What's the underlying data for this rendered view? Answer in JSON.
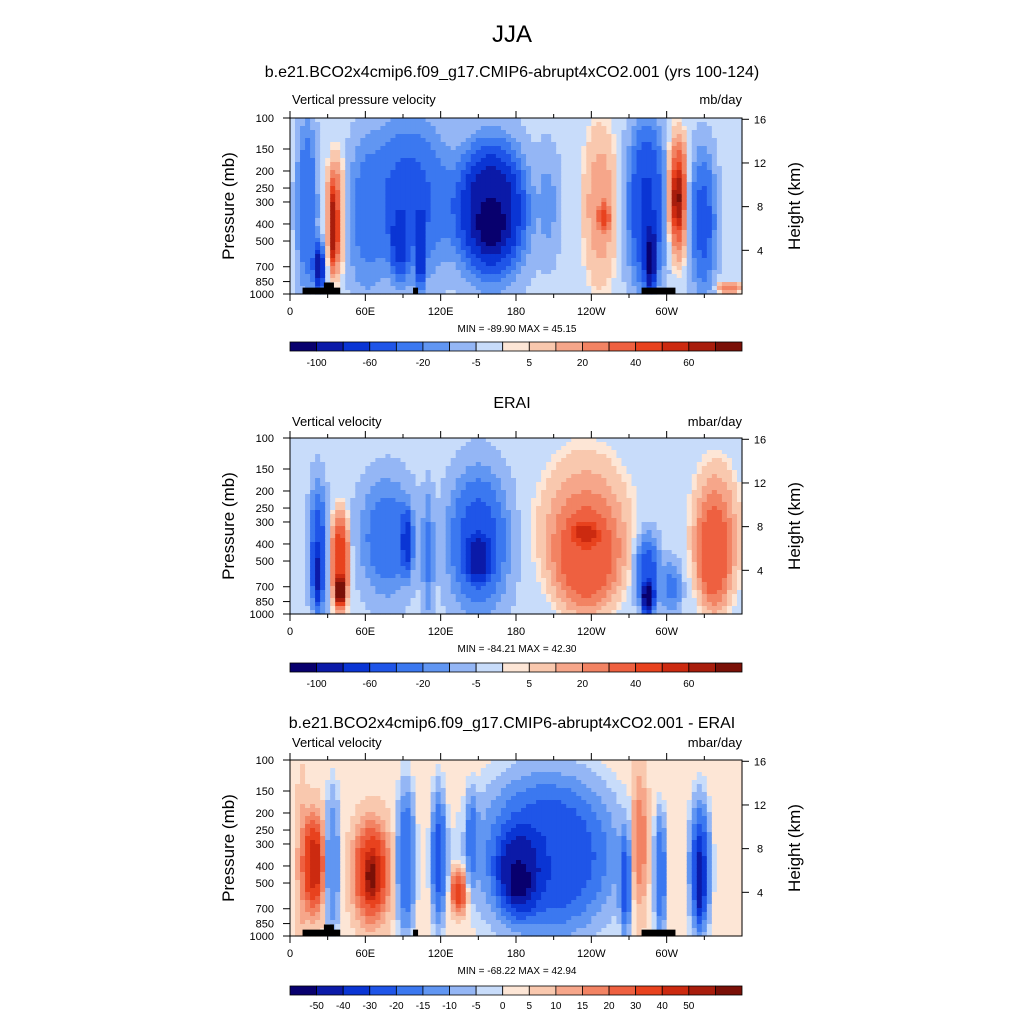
{
  "page_title": "JJA",
  "chart_data": [
    {
      "type": "heatmap",
      "title": "b.e21.BCO2x4cmip6.f09_g17.CMIP6-abrupt4xCO2.001 (yrs 100-124)",
      "left_label": "Vertical pressure velocity",
      "units_label": "mb/day",
      "ylabel": "Pressure (mb)",
      "ylabel_right": "Height (km)",
      "stats": "MIN = -89.90  MAX =  45.15",
      "x_ticks": [
        {
          "lon": 0,
          "label": "0"
        },
        {
          "lon": 60,
          "label": "60E"
        },
        {
          "lon": 120,
          "label": "120E"
        },
        {
          "lon": 180,
          "label": "180"
        },
        {
          "lon": 240,
          "label": "120W"
        },
        {
          "lon": 300,
          "label": "60W"
        }
      ],
      "y_ticks": [
        {
          "p": 100,
          "label": "100"
        },
        {
          "p": 150,
          "label": "150"
        },
        {
          "p": 200,
          "label": "200"
        },
        {
          "p": 250,
          "label": "250"
        },
        {
          "p": 300,
          "label": "300"
        },
        {
          "p": 400,
          "label": "400"
        },
        {
          "p": 500,
          "label": "500"
        },
        {
          "p": 700,
          "label": "700"
        },
        {
          "p": 850,
          "label": "850"
        },
        {
          "p": 1000,
          "label": "1000"
        }
      ],
      "y_right_ticks": [
        {
          "km": 4,
          "label": "4"
        },
        {
          "km": 8,
          "label": "8"
        },
        {
          "km": 12,
          "label": "12"
        },
        {
          "km": 16,
          "label": "16"
        }
      ],
      "colorbar": {
        "colors": [
          "#08006e",
          "#0b1aa8",
          "#0a35d4",
          "#1f55e8",
          "#3b78f0",
          "#6196f2",
          "#94b6f5",
          "#c8dcfa",
          "#fde6d6",
          "#f9c8ae",
          "#f6a68a",
          "#f28363",
          "#ee6040",
          "#e8421e",
          "#cc2a10",
          "#a81d0c",
          "#7a1007"
        ],
        "labels": [
          {
            "after": 1,
            "label": "-100"
          },
          {
            "after": 3,
            "label": "-60"
          },
          {
            "after": 5,
            "label": "-20"
          },
          {
            "after": 7,
            "label": "-5"
          },
          {
            "after": 9,
            "label": "5"
          },
          {
            "after": 11,
            "label": "20"
          },
          {
            "after": 13,
            "label": "40"
          },
          {
            "after": 15,
            "label": "60"
          }
        ]
      },
      "value_range": [
        -90,
        45
      ],
      "background_value": -4,
      "features": [
        {
          "lon": [
            5,
            22
          ],
          "p": [
            100,
            1000
          ],
          "v": -40
        },
        {
          "lon": [
            18,
            28
          ],
          "p": [
            500,
            1000
          ],
          "v": -70
        },
        {
          "lon": [
            28,
            45
          ],
          "p": [
            160,
            800
          ],
          "v": 20
        },
        {
          "lon": [
            32,
            38
          ],
          "p": [
            250,
            700
          ],
          "v": 40
        },
        {
          "lon": [
            45,
            75
          ],
          "p": [
            130,
            1000
          ],
          "v": -30
        },
        {
          "lon": [
            58,
            130
          ],
          "p": [
            100,
            850
          ],
          "v": -45
        },
        {
          "lon": [
            80,
            95
          ],
          "p": [
            300,
            800
          ],
          "v": -60
        },
        {
          "lon": [
            100,
            108
          ],
          "p": [
            300,
            1000
          ],
          "v": -65
        },
        {
          "lon": [
            130,
            190
          ],
          "p": [
            130,
            850
          ],
          "v": -75
        },
        {
          "lon": [
            150,
            170
          ],
          "p": [
            300,
            550
          ],
          "v": -90
        },
        {
          "lon": [
            195,
            215
          ],
          "p": [
            150,
            650
          ],
          "v": -20
        },
        {
          "lon": [
            232,
            262
          ],
          "p": [
            100,
            1000
          ],
          "v": 10
        },
        {
          "lon": [
            245,
            255
          ],
          "p": [
            300,
            450
          ],
          "v": 25
        },
        {
          "lon": [
            268,
            300
          ],
          "p": [
            100,
            1000
          ],
          "v": -55
        },
        {
          "lon": [
            282,
            292
          ],
          "p": [
            400,
            1000
          ],
          "v": -80
        },
        {
          "lon": [
            300,
            318
          ],
          "p": [
            120,
            650
          ],
          "v": 25
        },
        {
          "lon": [
            305,
            313
          ],
          "p": [
            200,
            400
          ],
          "v": 40
        },
        {
          "lon": [
            318,
            340
          ],
          "p": [
            150,
            1000
          ],
          "v": -45
        },
        {
          "lon": [
            340,
            360
          ],
          "p": [
            850,
            1000
          ],
          "v": 15
        }
      ],
      "topography": [
        {
          "lon": [
            10,
            40
          ],
          "p": 920
        },
        {
          "lon": [
            27,
            35
          ],
          "p": 860
        },
        {
          "lon": [
            98,
            102
          ],
          "p": 920
        },
        {
          "lon": [
            280,
            307
          ],
          "p": 920
        }
      ]
    },
    {
      "type": "heatmap",
      "title": "ERAI",
      "left_label": "Vertical velocity",
      "units_label": "mbar/day",
      "ylabel": "Pressure (mb)",
      "ylabel_right": "Height (km)",
      "stats": "MIN = -84.21  MAX =  42.30",
      "x_ticks": [
        {
          "lon": 0,
          "label": "0"
        },
        {
          "lon": 60,
          "label": "60E"
        },
        {
          "lon": 120,
          "label": "120E"
        },
        {
          "lon": 180,
          "label": "180"
        },
        {
          "lon": 240,
          "label": "120W"
        },
        {
          "lon": 300,
          "label": "60W"
        }
      ],
      "y_ticks": [
        {
          "p": 100,
          "label": "100"
        },
        {
          "p": 150,
          "label": "150"
        },
        {
          "p": 200,
          "label": "200"
        },
        {
          "p": 250,
          "label": "250"
        },
        {
          "p": 300,
          "label": "300"
        },
        {
          "p": 400,
          "label": "400"
        },
        {
          "p": 500,
          "label": "500"
        },
        {
          "p": 700,
          "label": "700"
        },
        {
          "p": 850,
          "label": "850"
        },
        {
          "p": 1000,
          "label": "1000"
        }
      ],
      "y_right_ticks": [
        {
          "km": 4,
          "label": "4"
        },
        {
          "km": 8,
          "label": "8"
        },
        {
          "km": 12,
          "label": "12"
        },
        {
          "km": 16,
          "label": "16"
        }
      ],
      "colorbar": {
        "colors": [
          "#08006e",
          "#0b1aa8",
          "#0a35d4",
          "#1f55e8",
          "#3b78f0",
          "#6196f2",
          "#94b6f5",
          "#c8dcfa",
          "#fde6d6",
          "#f9c8ae",
          "#f6a68a",
          "#f28363",
          "#ee6040",
          "#e8421e",
          "#cc2a10",
          "#a81d0c",
          "#7a1007"
        ],
        "labels": [
          {
            "after": 1,
            "label": "-100"
          },
          {
            "after": 3,
            "label": "-60"
          },
          {
            "after": 5,
            "label": "-20"
          },
          {
            "after": 7,
            "label": "-5"
          },
          {
            "after": 9,
            "label": "5"
          },
          {
            "after": 11,
            "label": "20"
          },
          {
            "after": 13,
            "label": "40"
          },
          {
            "after": 15,
            "label": "60"
          }
        ]
      },
      "value_range": [
        -85,
        42
      ],
      "background_value": -4,
      "features": [
        {
          "lon": [
            15,
            30
          ],
          "p": [
            180,
            1000
          ],
          "v": -45
        },
        {
          "lon": [
            18,
            26
          ],
          "p": [
            400,
            900
          ],
          "v": -65
        },
        {
          "lon": [
            32,
            48
          ],
          "p": [
            250,
            1000
          ],
          "v": 25
        },
        {
          "lon": [
            36,
            44
          ],
          "p": [
            600,
            900
          ],
          "v": 42
        },
        {
          "lon": [
            55,
            100
          ],
          "p": [
            170,
            800
          ],
          "v": -35
        },
        {
          "lon": [
            88,
            98
          ],
          "p": [
            250,
            600
          ],
          "v": -55
        },
        {
          "lon": [
            105,
            115
          ],
          "p": [
            200,
            1000
          ],
          "v": -30
        },
        {
          "lon": [
            125,
            175
          ],
          "p": [
            150,
            1000
          ],
          "v": -45
        },
        {
          "lon": [
            140,
            160
          ],
          "p": [
            350,
            650
          ],
          "v": -70
        },
        {
          "lon": [
            195,
            275
          ],
          "p": [
            110,
            1000
          ],
          "v": 10
        },
        {
          "lon": [
            210,
            262
          ],
          "p": [
            220,
            950
          ],
          "v": 22
        },
        {
          "lon": [
            225,
            245
          ],
          "p": [
            300,
            400
          ],
          "v": 30
        },
        {
          "lon": [
            275,
            295
          ],
          "p": [
            350,
            1000
          ],
          "v": -45
        },
        {
          "lon": [
            280,
            290
          ],
          "p": [
            650,
            1000
          ],
          "v": -80
        },
        {
          "lon": [
            295,
            312
          ],
          "p": [
            500,
            1000
          ],
          "v": -30
        },
        {
          "lon": [
            318,
            360
          ],
          "p": [
            130,
            1000
          ],
          "v": 12
        },
        {
          "lon": [
            325,
            350
          ],
          "p": [
            230,
            900
          ],
          "v": 22
        }
      ],
      "topography": []
    },
    {
      "type": "heatmap",
      "title": "b.e21.BCO2x4cmip6.f09_g17.CMIP6-abrupt4xCO2.001 - ERAI",
      "left_label": "Vertical velocity",
      "units_label": "mbar/day",
      "ylabel": "Pressure (mb)",
      "ylabel_right": "Height (km)",
      "stats": "MIN = -68.22  MAX =  42.94",
      "x_ticks": [
        {
          "lon": 0,
          "label": "0"
        },
        {
          "lon": 60,
          "label": "60E"
        },
        {
          "lon": 120,
          "label": "120E"
        },
        {
          "lon": 180,
          "label": "180"
        },
        {
          "lon": 240,
          "label": "120W"
        },
        {
          "lon": 300,
          "label": "60W"
        }
      ],
      "y_ticks": [
        {
          "p": 100,
          "label": "100"
        },
        {
          "p": 150,
          "label": "150"
        },
        {
          "p": 200,
          "label": "200"
        },
        {
          "p": 250,
          "label": "250"
        },
        {
          "p": 300,
          "label": "300"
        },
        {
          "p": 400,
          "label": "400"
        },
        {
          "p": 500,
          "label": "500"
        },
        {
          "p": 700,
          "label": "700"
        },
        {
          "p": 850,
          "label": "850"
        },
        {
          "p": 1000,
          "label": "1000"
        }
      ],
      "y_right_ticks": [
        {
          "km": 4,
          "label": "4"
        },
        {
          "km": 8,
          "label": "8"
        },
        {
          "km": 12,
          "label": "12"
        },
        {
          "km": 16,
          "label": "16"
        }
      ],
      "colorbar": {
        "colors": [
          "#08006e",
          "#0b1aa8",
          "#0a35d4",
          "#1f55e8",
          "#3b78f0",
          "#6196f2",
          "#94b6f5",
          "#c8dcfa",
          "#fde6d6",
          "#f9c8ae",
          "#f6a68a",
          "#f28363",
          "#ee6040",
          "#e8421e",
          "#cc2a10",
          "#a81d0c",
          "#7a1007"
        ],
        "labels": [
          {
            "after": 1,
            "label": "-50"
          },
          {
            "after": 2,
            "label": "-40"
          },
          {
            "after": 3,
            "label": "-30"
          },
          {
            "after": 4,
            "label": "-20"
          },
          {
            "after": 5,
            "label": "-15"
          },
          {
            "after": 6,
            "label": "-10"
          },
          {
            "after": 7,
            "label": "-5"
          },
          {
            "after": 8,
            "label": "0"
          },
          {
            "after": 9,
            "label": "5"
          },
          {
            "after": 10,
            "label": "10"
          },
          {
            "after": 11,
            "label": "15"
          },
          {
            "after": 12,
            "label": "20"
          },
          {
            "after": 13,
            "label": "30"
          },
          {
            "after": 14,
            "label": "40"
          },
          {
            "after": 15,
            "label": "50"
          }
        ]
      },
      "value_range": [
        -68,
        43
      ],
      "background_value": 2,
      "features": [
        {
          "lon": [
            5,
            15
          ],
          "p": [
            150,
            1000
          ],
          "v": 10
        },
        {
          "lon": [
            10,
            28
          ],
          "p": [
            200,
            750
          ],
          "v": 30
        },
        {
          "lon": [
            28,
            40
          ],
          "p": [
            150,
            1000
          ],
          "v": -20
        },
        {
          "lon": [
            50,
            80
          ],
          "p": [
            220,
            850
          ],
          "v": 28
        },
        {
          "lon": [
            60,
            70
          ],
          "p": [
            350,
            600
          ],
          "v": 40
        },
        {
          "lon": [
            85,
            100
          ],
          "p": [
            140,
            1000
          ],
          "v": -30
        },
        {
          "lon": [
            112,
            125
          ],
          "p": [
            150,
            850
          ],
          "v": -35
        },
        {
          "lon": [
            128,
            142
          ],
          "p": [
            400,
            750
          ],
          "v": 28
        },
        {
          "lon": [
            140,
            150
          ],
          "p": [
            150,
            500
          ],
          "v": -25
        },
        {
          "lon": [
            150,
            260
          ],
          "p": [
            120,
            1000
          ],
          "v": -40
        },
        {
          "lon": [
            165,
            200
          ],
          "p": [
            250,
            750
          ],
          "v": -58
        },
        {
          "lon": [
            175,
            190
          ],
          "p": [
            400,
            600
          ],
          "v": -68
        },
        {
          "lon": [
            262,
            272
          ],
          "p": [
            250,
            1000
          ],
          "v": -35
        },
        {
          "lon": [
            272,
            285
          ],
          "p": [
            120,
            700
          ],
          "v": 15
        },
        {
          "lon": [
            290,
            300
          ],
          "p": [
            200,
            1000
          ],
          "v": -30
        },
        {
          "lon": [
            318,
            335
          ],
          "p": [
            170,
            1000
          ],
          "v": -40
        },
        {
          "lon": [
            323,
            330
          ],
          "p": [
            300,
            800
          ],
          "v": -55
        }
      ],
      "topography": [
        {
          "lon": [
            10,
            40
          ],
          "p": 920
        },
        {
          "lon": [
            27,
            35
          ],
          "p": 860
        },
        {
          "lon": [
            98,
            102
          ],
          "p": 920
        },
        {
          "lon": [
            280,
            307
          ],
          "p": 920
        }
      ]
    }
  ]
}
